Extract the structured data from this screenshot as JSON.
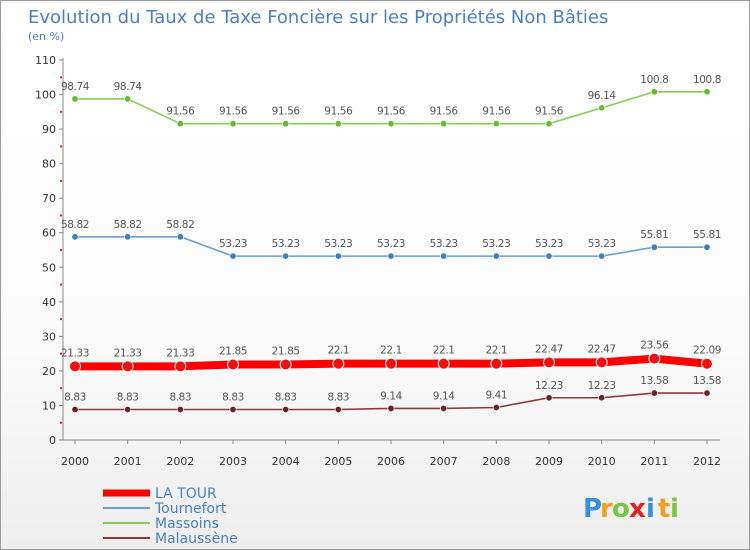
{
  "chart_data": {
    "type": "line",
    "title": "Evolution du Taux de Taxe Foncière sur les Propriétés Non Bâties",
    "ylabel": "(en %)",
    "xlabel": "",
    "ylim": [
      0,
      110
    ],
    "yticks": [
      "0",
      "10",
      "20",
      "30",
      "40",
      "50",
      "60",
      "70",
      "80",
      "90",
      "100",
      "110"
    ],
    "categories": [
      "2000",
      "2001",
      "2002",
      "2003",
      "2004",
      "2005",
      "2006",
      "2007",
      "2008",
      "2009",
      "2010",
      "2011",
      "2012"
    ],
    "series": [
      {
        "name": "Massoins",
        "color": "#88cc55",
        "markerColor": "#66bb33",
        "values": [
          98.74,
          98.74,
          91.56,
          91.56,
          91.56,
          91.56,
          91.56,
          91.56,
          91.56,
          91.56,
          96.14,
          100.8,
          100.8
        ],
        "labels": [
          "98.74",
          "98.74",
          "91.56",
          "91.56",
          "91.56",
          "91.56",
          "91.56",
          "91.56",
          "91.56",
          "91.56",
          "96.14",
          "100.8",
          "100.8"
        ]
      },
      {
        "name": "Tournefort",
        "color": "#6a9fd0",
        "markerColor": "#3f7fbf",
        "values": [
          58.82,
          58.82,
          58.82,
          53.23,
          53.23,
          53.23,
          53.23,
          53.23,
          53.23,
          53.23,
          53.23,
          55.81,
          55.81
        ],
        "labels": [
          "58.82",
          "58.82",
          "58.82",
          "53.23",
          "53.23",
          "53.23",
          "53.23",
          "53.23",
          "53.23",
          "53.23",
          "53.23",
          "55.81",
          "55.81"
        ]
      },
      {
        "name": "LA TOUR",
        "color": "#ff0000",
        "markerColor": "#ee1111",
        "values": [
          21.33,
          21.33,
          21.33,
          21.85,
          21.85,
          22.1,
          22.1,
          22.1,
          22.1,
          22.47,
          22.47,
          23.56,
          22.09
        ],
        "labels": [
          "21.33",
          "21.33",
          "21.33",
          "21.85",
          "21.85",
          "22.1",
          "22.1",
          "22.1",
          "22.1",
          "22.47",
          "22.47",
          "23.56",
          "22.09"
        ]
      },
      {
        "name": "Malaussène",
        "color": "#8a3a3a",
        "markerColor": "#6b2424",
        "values": [
          8.83,
          8.83,
          8.83,
          8.83,
          8.83,
          8.83,
          9.14,
          9.14,
          9.41,
          12.23,
          12.23,
          13.58,
          13.58
        ],
        "labels": [
          "8.83",
          "8.83",
          "8.83",
          "8.83",
          "8.83",
          "8.83",
          "9.14",
          "9.14",
          "9.41",
          "12.23",
          "12.23",
          "13.58",
          "13.58"
        ]
      }
    ],
    "legend": [
      "LA TOUR",
      "Tournefort",
      "Massoins",
      "Malaussène"
    ],
    "legend_position": "bottom-left",
    "grid": false
  },
  "brand": {
    "letters": [
      "P",
      "r",
      "o",
      "x",
      "i",
      "t",
      "i"
    ],
    "colors": [
      "#3a8fd8",
      "#f0a020",
      "#7cc243",
      "#e02020",
      "#3a8fd8",
      "#f0a020",
      "#7cc243"
    ]
  }
}
